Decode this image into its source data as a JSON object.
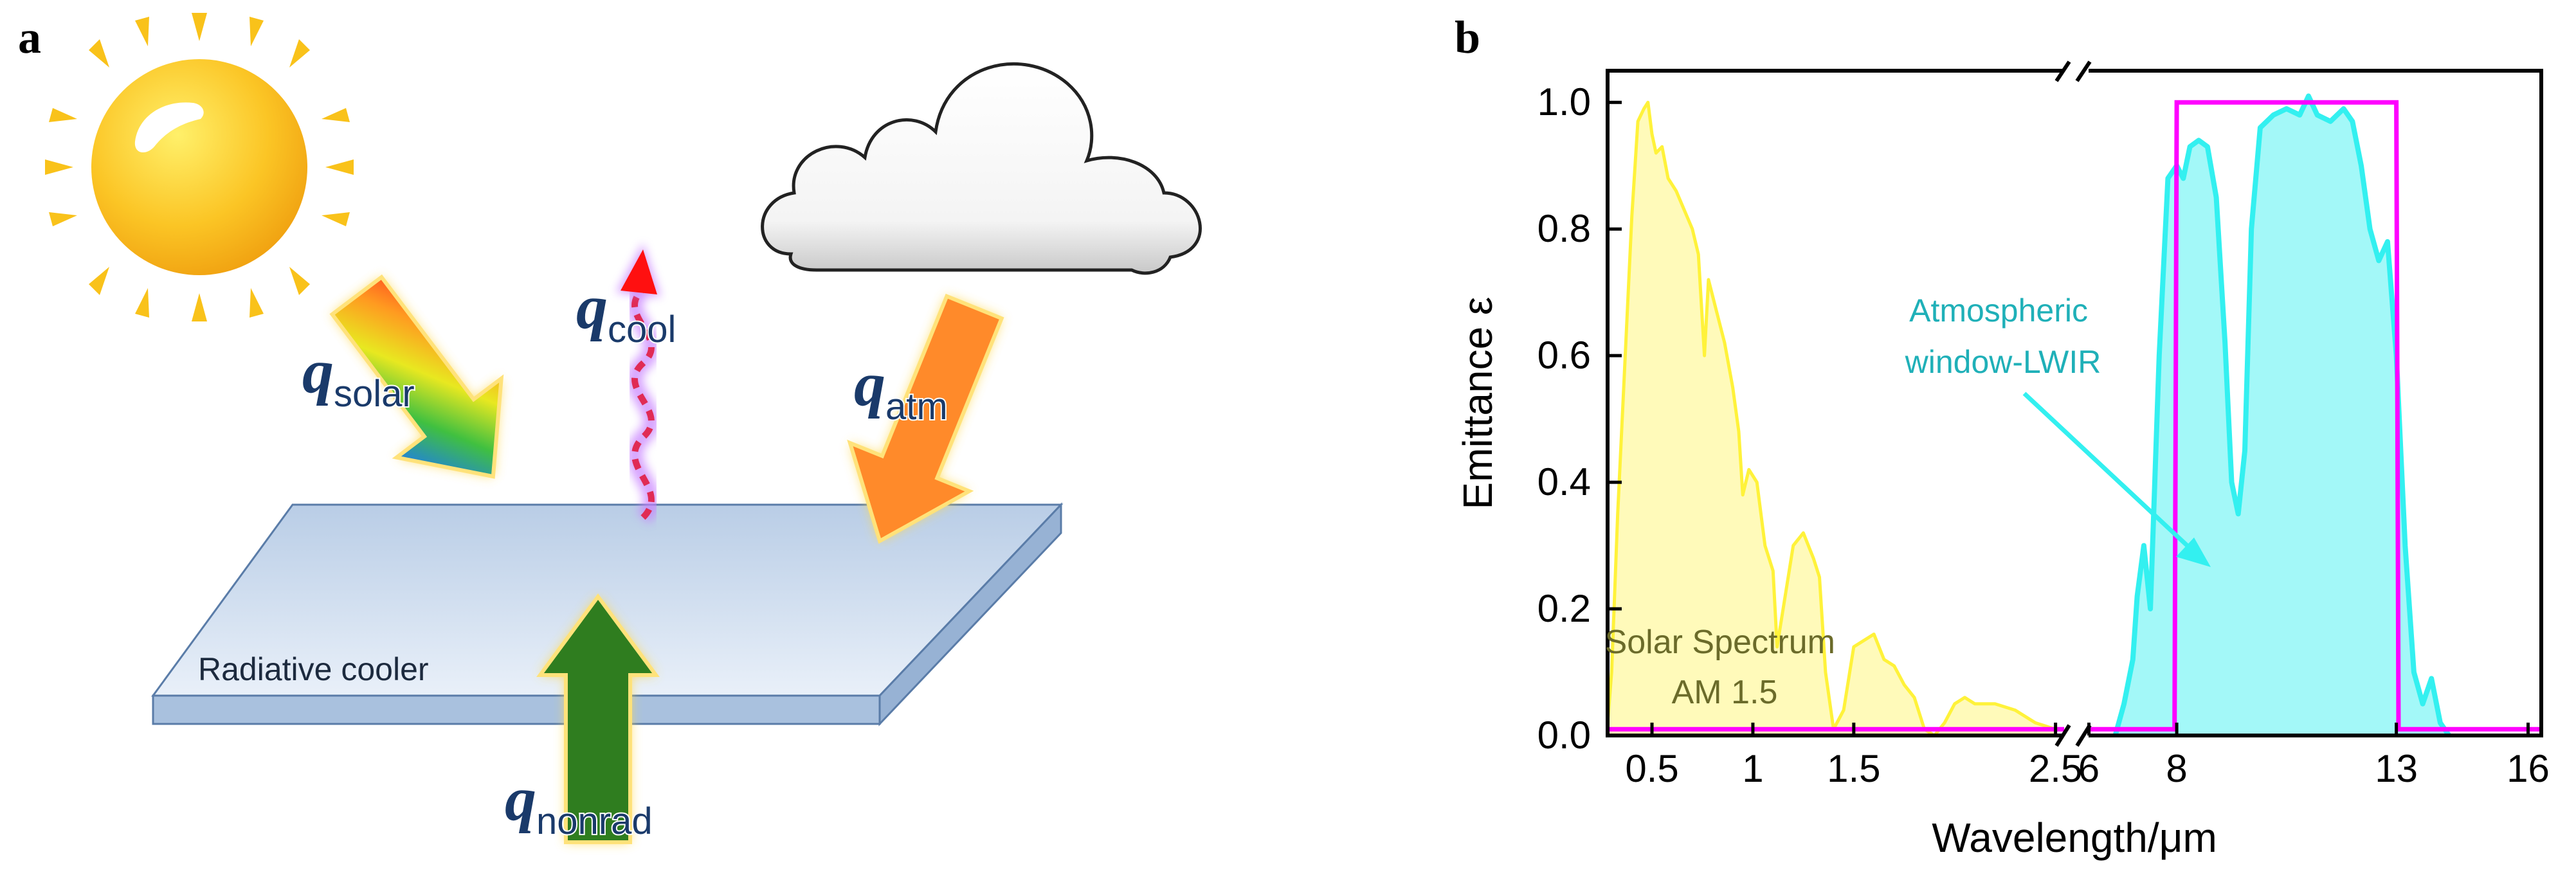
{
  "panel_a": {
    "label": "a",
    "cooler_label": "Radiative cooler",
    "fluxes": {
      "solar": {
        "symbol": "q",
        "subscript": "solar"
      },
      "cool": {
        "symbol": "q",
        "subscript": "cool"
      },
      "atm": {
        "symbol": "q",
        "subscript": "atm"
      },
      "nonrad": {
        "symbol": "q",
        "subscript": "nonrad"
      }
    },
    "icons": [
      "sun-icon",
      "cloud-icon"
    ],
    "colors": {
      "sun": "#f9b51b",
      "atm_arrow": "#ff8a2a",
      "nonrad_arrow": "#2f7d1f",
      "cool_wave": "#e02b55",
      "flux_text": "#1a3a6a",
      "cooler": "#c9d9ee"
    }
  },
  "panel_b": {
    "label": "b"
  },
  "chart_data": {
    "type": "area",
    "title": "",
    "xlabel": "Wavelength/μm",
    "ylabel": "Emittance ε",
    "x_axis_break": true,
    "x_tick_labels": [
      "0.5",
      "1",
      "1.5",
      "2.5",
      "6",
      "8",
      "13",
      "16"
    ],
    "x_tick_values": [
      0.5,
      1,
      1.5,
      2.5,
      6,
      8,
      13,
      16
    ],
    "y_ticks": [
      "0.0",
      "0.2",
      "0.4",
      "0.6",
      "0.8",
      "1.0"
    ],
    "ylim": [
      0,
      1.05
    ],
    "grid": false,
    "annotations": [
      {
        "text_lines": [
          "Solar Spectrum",
          "AM 1.5"
        ],
        "target": "solar"
      },
      {
        "text_lines": [
          "Atmospheric",
          "window-LWIR"
        ],
        "target": "lwir"
      }
    ],
    "series": [
      {
        "role": "solar",
        "color": "#fff23a",
        "x": [
          0.28,
          0.3,
          0.33,
          0.36,
          0.4,
          0.43,
          0.46,
          0.48,
          0.5,
          0.52,
          0.55,
          0.58,
          0.62,
          0.66,
          0.7,
          0.73,
          0.76,
          0.78,
          0.82,
          0.86,
          0.9,
          0.93,
          0.95,
          0.98,
          1.02,
          1.06,
          1.1,
          1.12,
          1.15,
          1.2,
          1.25,
          1.3,
          1.33,
          1.36,
          1.4,
          1.45,
          1.5,
          1.55,
          1.6,
          1.65,
          1.7,
          1.75,
          1.8,
          1.85,
          1.9,
          1.95,
          2.0,
          2.05,
          2.1,
          2.2,
          2.3,
          2.4,
          2.5
        ],
        "y": [
          0.02,
          0.1,
          0.35,
          0.55,
          0.82,
          0.97,
          0.99,
          1.0,
          0.95,
          0.92,
          0.93,
          0.88,
          0.86,
          0.83,
          0.8,
          0.76,
          0.6,
          0.72,
          0.67,
          0.62,
          0.55,
          0.48,
          0.38,
          0.42,
          0.4,
          0.3,
          0.26,
          0.14,
          0.2,
          0.3,
          0.32,
          0.28,
          0.25,
          0.1,
          0.01,
          0.04,
          0.14,
          0.15,
          0.16,
          0.12,
          0.11,
          0.08,
          0.06,
          0.01,
          0.0,
          0.02,
          0.05,
          0.06,
          0.05,
          0.05,
          0.04,
          0.02,
          0.01
        ]
      },
      {
        "role": "lwir",
        "color": "#33f0f0",
        "x": [
          6.6,
          6.8,
          7.0,
          7.1,
          7.25,
          7.4,
          7.6,
          7.8,
          8.0,
          8.15,
          8.3,
          8.5,
          8.7,
          8.9,
          9.1,
          9.25,
          9.4,
          9.55,
          9.7,
          9.9,
          10.2,
          10.5,
          10.8,
          11.0,
          11.2,
          11.5,
          11.8,
          12.0,
          12.2,
          12.4,
          12.6,
          12.8,
          13.0,
          13.2,
          13.4,
          13.6,
          13.8,
          14.0,
          14.2
        ],
        "y": [
          0.0,
          0.05,
          0.12,
          0.22,
          0.3,
          0.2,
          0.6,
          0.88,
          0.9,
          0.88,
          0.93,
          0.94,
          0.93,
          0.85,
          0.62,
          0.4,
          0.35,
          0.45,
          0.8,
          0.96,
          0.98,
          0.99,
          0.98,
          1.01,
          0.98,
          0.97,
          0.99,
          0.97,
          0.9,
          0.8,
          0.75,
          0.78,
          0.6,
          0.3,
          0.1,
          0.05,
          0.09,
          0.02,
          0.0
        ]
      },
      {
        "role": "ideal",
        "color": "#ff00ff",
        "x": [
          0.28,
          7.95,
          8.0,
          13.0,
          13.05,
          16.3
        ],
        "y": [
          0.01,
          0.01,
          1.0,
          1.0,
          0.01,
          0.01
        ]
      }
    ]
  }
}
